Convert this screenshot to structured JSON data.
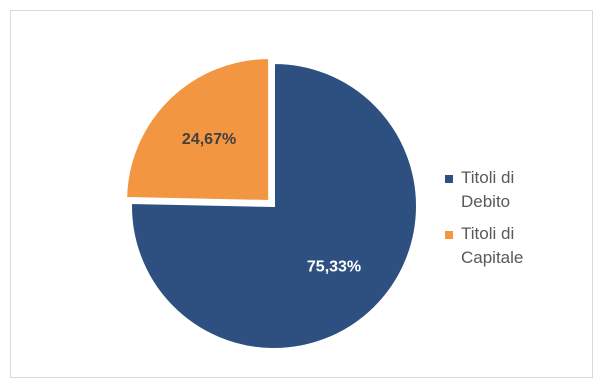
{
  "chart_data": {
    "type": "pie",
    "categories": [
      "Titoli di Debito",
      "Titoli di Capitale"
    ],
    "values": [
      75.33,
      24.67
    ],
    "data_labels": [
      "75,33%",
      "24,67%"
    ],
    "colors": [
      "#2e5080",
      "#f39641"
    ],
    "label_colors": [
      "#ffffff",
      "#404040"
    ],
    "exploded": [
      false,
      true
    ],
    "legend_position": "right",
    "title": ""
  }
}
